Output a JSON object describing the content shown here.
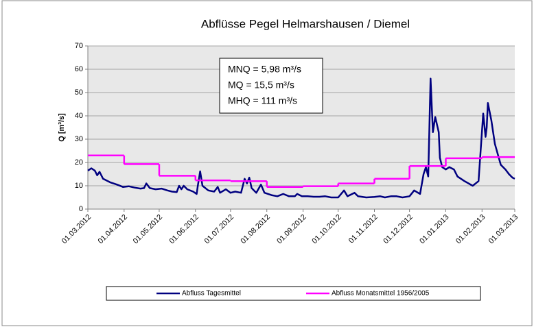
{
  "chart_data": {
    "type": "line",
    "title": "Abflüsse Pegel Helmarshausen / Diemel",
    "ylabel": "Q [m³/s]",
    "annotations": [
      "MNQ = 5,98 m³/s",
      "MQ = 15,5 m³/s",
      "MHQ = 111 m³/s"
    ],
    "xlim": [
      "01.03.2012",
      "01.03.2013"
    ],
    "xticks": [
      "01.03.2012",
      "01.04.2012",
      "01.05.2012",
      "01.06.2012",
      "01.07.2012",
      "01.08.2012",
      "01.09.2012",
      "01.10.2012",
      "01.11.2012",
      "01.12.2012",
      "01.01.2013",
      "01.02.2013",
      "01.03.2013"
    ],
    "ylim": [
      0,
      70
    ],
    "yticks": [
      0,
      10,
      20,
      30,
      40,
      50,
      60,
      70
    ],
    "grid": true,
    "series": [
      {
        "name": "Abfluss Tagesmittel",
        "color": "#000080",
        "x": [
          "01.03.2012",
          "04.03.2012",
          "07.03.2012",
          "09.03.2012",
          "11.03.2012",
          "14.03.2012",
          "20.03.2012",
          "26.03.2012",
          "31.03.2012",
          "05.04.2012",
          "10.04.2012",
          "15.04.2012",
          "18.04.2012",
          "20.04.2012",
          "23.04.2012",
          "28.04.2012",
          "03.05.2012",
          "08.05.2012",
          "12.05.2012",
          "16.05.2012",
          "18.05.2012",
          "20.05.2012",
          "22.05.2012",
          "25.05.2012",
          "30.05.2012",
          "02.06.2012",
          "03.06.2012",
          "05.06.2012",
          "07.06.2012",
          "12.06.2012",
          "17.06.2012",
          "20.06.2012",
          "22.06.2012",
          "27.06.2012",
          "01.07.2012",
          "05.07.2012",
          "10.07.2012",
          "13.07.2012",
          "15.07.2012",
          "17.07.2012",
          "19.07.2012",
          "23.07.2012",
          "27.07.2012",
          "30.07.2012",
          "05.08.2012",
          "10.08.2012",
          "15.08.2012",
          "20.08.2012",
          "25.08.2012",
          "27.08.2012",
          "31.08.2012",
          "05.09.2012",
          "10.09.2012",
          "15.09.2012",
          "20.09.2012",
          "25.09.2012",
          "01.10.2012",
          "06.10.2012",
          "09.10.2012",
          "15.10.2012",
          "18.10.2012",
          "25.10.2012",
          "01.11.2012",
          "06.11.2012",
          "10.11.2012",
          "15.11.2012",
          "20.11.2012",
          "25.11.2012",
          "01.12.2012",
          "05.12.2012",
          "10.12.2012",
          "13.12.2012",
          "15.12.2012",
          "17.12.2012",
          "19.12.2012",
          "21.12.2012",
          "23.12.2012",
          "26.12.2012",
          "27.12.2012",
          "29.12.2012",
          "01.01.2013",
          "04.01.2013",
          "08.01.2013",
          "11.01.2013",
          "17.01.2013",
          "24.01.2013",
          "29.01.2013",
          "02.02.2013",
          "04.02.2013",
          "05.02.2013",
          "06.02.2013",
          "09.02.2013",
          "12.02.2013",
          "17.02.2013",
          "21.02.2013",
          "24.02.2013",
          "27.02.2013",
          "01.03.2013"
        ],
        "values": [
          16.5,
          17.5,
          16.5,
          14.5,
          16,
          13,
          11.5,
          10.5,
          9.5,
          9.8,
          9.2,
          8.8,
          9,
          11,
          9,
          8.5,
          8.8,
          8,
          7.5,
          7.3,
          10,
          8.5,
          10,
          8.5,
          7.5,
          6.5,
          10,
          16.2,
          10,
          8,
          7.5,
          9.5,
          7,
          8.5,
          7,
          7.5,
          7,
          13,
          11,
          13.5,
          9,
          7,
          10.5,
          7,
          6,
          5.5,
          6.5,
          5.5,
          5.5,
          6.5,
          5.5,
          5.5,
          5.3,
          5.3,
          5.5,
          5,
          5,
          8,
          5.5,
          7,
          5.5,
          5,
          5.2,
          5.5,
          5,
          5.5,
          5.5,
          5,
          5.5,
          8,
          6.5,
          15,
          18,
          14,
          56,
          33,
          39.5,
          33,
          22,
          18,
          17,
          18,
          17,
          14,
          12,
          10,
          12,
          41,
          31,
          35,
          45.5,
          38,
          28,
          19,
          17,
          15,
          13.5,
          13
        ]
      },
      {
        "name": "Abfluss Monatsmittel 1956/2005",
        "color": "#ff00ff",
        "drawstyle": "steps-post",
        "x": [
          "01.03.2012",
          "01.04.2012",
          "01.05.2012",
          "01.06.2012",
          "01.07.2012",
          "01.08.2012",
          "01.09.2012",
          "01.10.2012",
          "01.11.2012",
          "01.12.2012",
          "01.01.2013",
          "01.02.2013"
        ],
        "values": [
          23,
          19.3,
          14.3,
          12.3,
          12,
          9.5,
          9.8,
          11,
          13,
          18.5,
          21.8,
          22.3
        ]
      }
    ]
  }
}
